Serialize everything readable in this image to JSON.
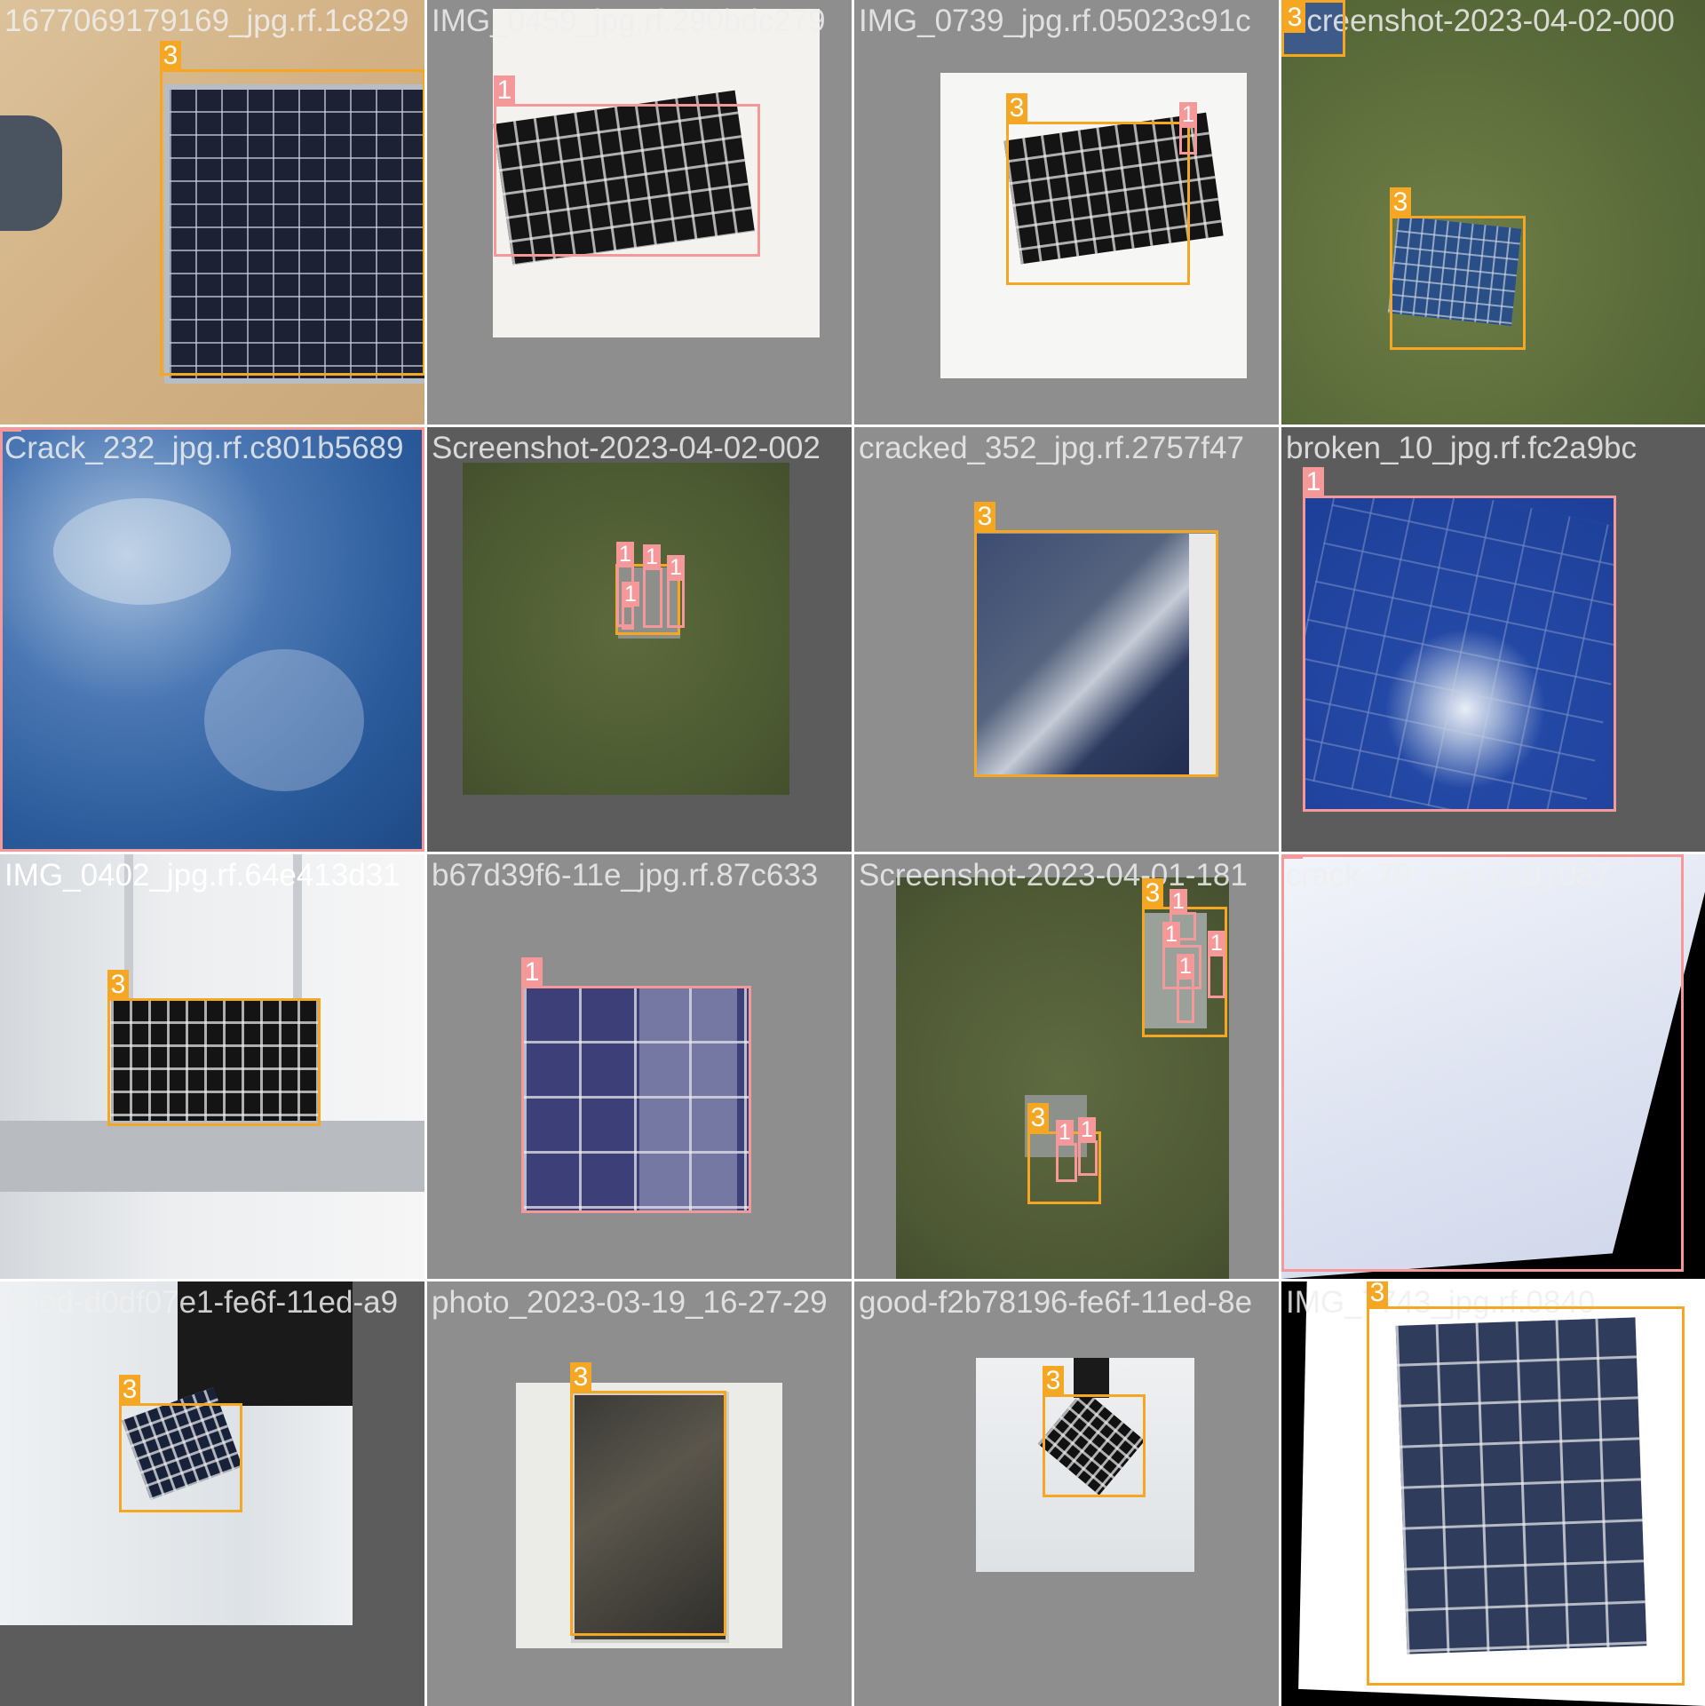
{
  "mosaic": {
    "tiles": [
      {
        "filename": "1677069179169_jpg.rf.1c829"
      },
      {
        "filename": "IMG_0459_jpg.rf.290bdc279"
      },
      {
        "filename": "IMG_0739_jpg.rf.05023c91c"
      },
      {
        "filename": "Screenshot-2023-04-02-000"
      },
      {
        "filename": "Crack_232_jpg.rf.c801b5689"
      },
      {
        "filename": "Screenshot-2023-04-02-002"
      },
      {
        "filename": "cracked_352_jpg.rf.2757f47"
      },
      {
        "filename": "broken_10_jpg.rf.fc2a9bc"
      },
      {
        "filename": "IMG_0402_jpg.rf.64e413d31"
      },
      {
        "filename": "b67d39f6-11e_jpg.rf.87c633"
      },
      {
        "filename": "Screenshot-2023-04-01-181"
      },
      {
        "filename": "crack_79_jpg.rf.a970a7"
      },
      {
        "filename": "good-d0df07e1-fe6f-11ed-a9"
      },
      {
        "filename": "photo_2023-03-19_16-27-29"
      },
      {
        "filename": "good-f2b78196-fe6f-11ed-8e"
      },
      {
        "filename": "IMG_7743_jpg.rf.0840"
      }
    ],
    "class_labels": {
      "class_1": "1",
      "class_3": "3"
    },
    "colors": {
      "class_1": "#f4989a",
      "class_3": "#f5a623"
    }
  }
}
